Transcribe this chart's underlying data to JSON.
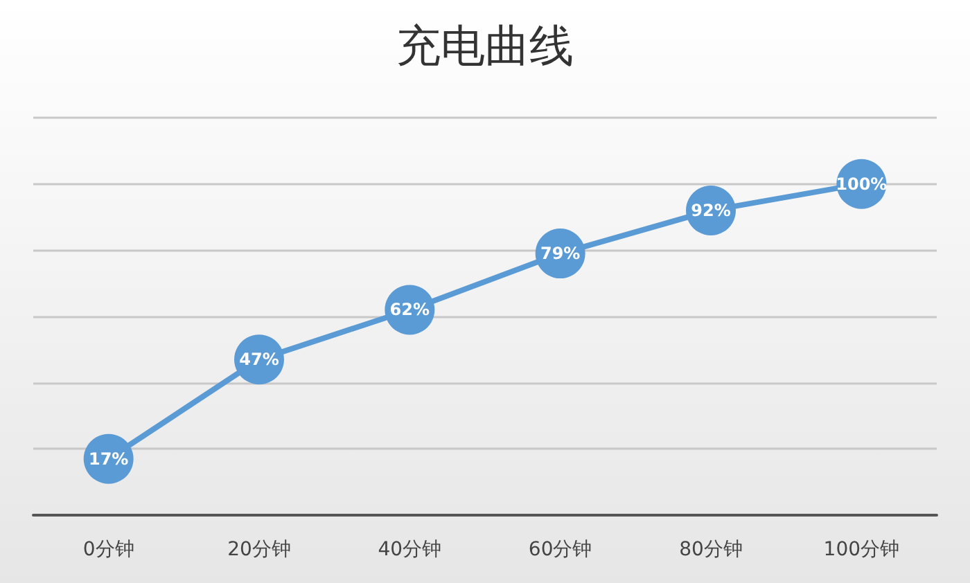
{
  "chart_data": {
    "type": "line",
    "title": "充电曲线",
    "categories": [
      "0分钟",
      "20分钟",
      "40分钟",
      "60分钟",
      "80分钟",
      "100分钟"
    ],
    "series": [
      {
        "color": "#5b9bd5",
        "values": [
          17,
          47,
          62,
          79,
          92,
          100
        ],
        "value_labels": [
          "17%",
          "47%",
          "62%",
          "79%",
          "92%",
          "100%"
        ]
      }
    ],
    "ylim": [
      0,
      120
    ],
    "yticks": [
      0,
      20,
      40,
      60,
      80,
      100,
      120
    ],
    "tick_labels": "x",
    "grid": "y",
    "marker": "circle",
    "line_style": "solid"
  }
}
